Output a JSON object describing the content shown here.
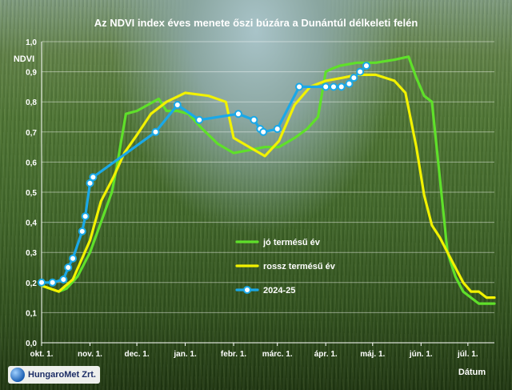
{
  "chart_data": {
    "type": "line",
    "title": "Az NDVI index éves menete őszi búzára a Dunántúl délkeleti felén",
    "ylabel": "NDVI",
    "xlabel": "Dátum",
    "ylim": [
      0,
      1
    ],
    "yticks": [
      "0,0",
      "0,1",
      "0,2",
      "0,3",
      "0,4",
      "0,5",
      "0,6",
      "0,7",
      "0,8",
      "0,9",
      "1,0"
    ],
    "xlim": [
      0,
      290
    ],
    "xticks": [
      {
        "label": "okt. 1.",
        "day": 0
      },
      {
        "label": "nov. 1.",
        "day": 31
      },
      {
        "label": "dec. 1.",
        "day": 61
      },
      {
        "label": "jan. 1.",
        "day": 92
      },
      {
        "label": "febr. 1.",
        "day": 123
      },
      {
        "label": "márc. 1.",
        "day": 151
      },
      {
        "label": "ápr. 1.",
        "day": 182
      },
      {
        "label": "máj. 1.",
        "day": 212
      },
      {
        "label": "jún. 1.",
        "day": 243
      },
      {
        "label": "júl. 1.",
        "day": 273
      }
    ],
    "grid": true,
    "legend_position": "bottom-center",
    "series": [
      {
        "name": "jó termésű év",
        "color": "#5fe02a",
        "marker": "none",
        "x": [
          0,
          11,
          16,
          23,
          31,
          38,
          45,
          48,
          54,
          61,
          68,
          75,
          80,
          87,
          94,
          103,
          113,
          123,
          133,
          143,
          152,
          162,
          170,
          177,
          182,
          186,
          191,
          202,
          214,
          226,
          235,
          240,
          245,
          250,
          255,
          260,
          265,
          270,
          275,
          280,
          290
        ],
        "y": [
          0.19,
          0.17,
          0.18,
          0.22,
          0.3,
          0.4,
          0.5,
          0.58,
          0.76,
          0.77,
          0.79,
          0.81,
          0.77,
          0.77,
          0.76,
          0.71,
          0.66,
          0.63,
          0.64,
          0.65,
          0.65,
          0.68,
          0.71,
          0.75,
          0.9,
          0.91,
          0.92,
          0.93,
          0.93,
          0.94,
          0.95,
          0.88,
          0.82,
          0.8,
          0.55,
          0.3,
          0.22,
          0.17,
          0.15,
          0.13,
          0.13
        ]
      },
      {
        "name": "rossz termésű év",
        "color": "#f2f200",
        "marker": "none",
        "x": [
          0,
          11,
          20,
          31,
          38,
          46,
          53,
          61,
          70,
          80,
          92,
          107,
          118,
          123,
          133,
          143,
          152,
          162,
          172,
          182,
          193,
          202,
          214,
          226,
          233,
          240,
          245,
          250,
          255,
          260,
          265,
          270,
          275,
          280,
          285,
          290
        ],
        "y": [
          0.19,
          0.17,
          0.21,
          0.34,
          0.47,
          0.55,
          0.63,
          0.69,
          0.76,
          0.8,
          0.83,
          0.82,
          0.8,
          0.68,
          0.65,
          0.62,
          0.67,
          0.79,
          0.85,
          0.87,
          0.88,
          0.89,
          0.89,
          0.87,
          0.83,
          0.65,
          0.49,
          0.39,
          0.35,
          0.3,
          0.25,
          0.2,
          0.17,
          0.17,
          0.15,
          0.15
        ]
      },
      {
        "name": "2024-25",
        "color": "#1aa8e8",
        "marker": "circle",
        "x": [
          0,
          7,
          14,
          17,
          20,
          26,
          28,
          31,
          33,
          73,
          87,
          101,
          126,
          136,
          140,
          142,
          151,
          165,
          182,
          187,
          192,
          197,
          200,
          204,
          208
        ],
        "y": [
          0.2,
          0.2,
          0.21,
          0.25,
          0.28,
          0.37,
          0.42,
          0.53,
          0.55,
          0.7,
          0.79,
          0.74,
          0.76,
          0.74,
          0.71,
          0.7,
          0.71,
          0.85,
          0.85,
          0.85,
          0.85,
          0.86,
          0.88,
          0.9,
          0.92
        ]
      }
    ]
  },
  "logo": {
    "text": "HungaroMet Zrt."
  }
}
